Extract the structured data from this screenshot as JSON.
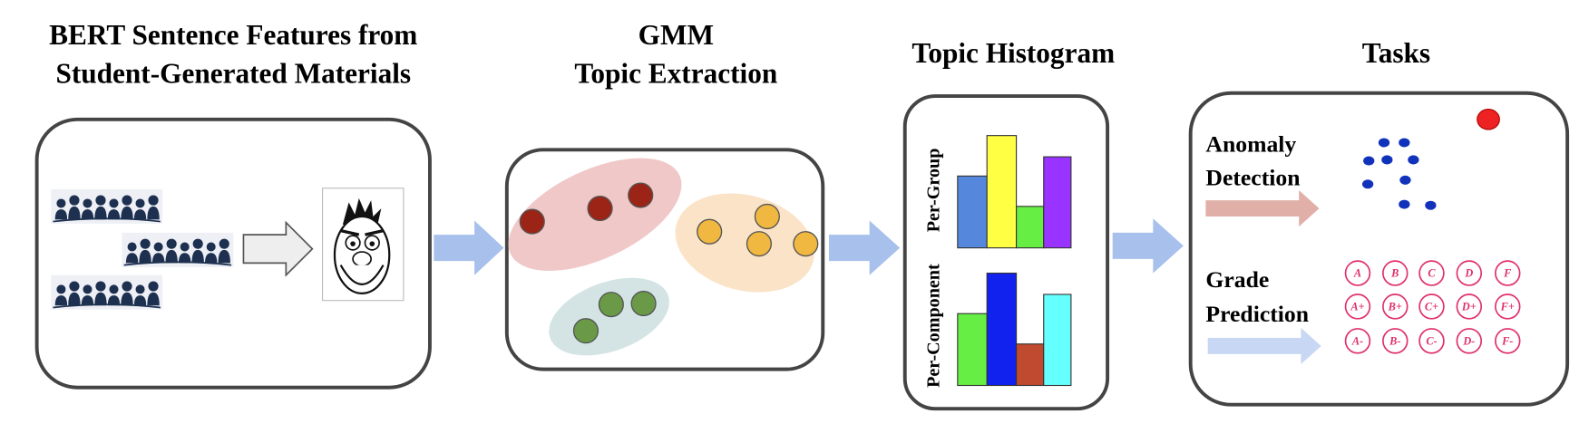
{
  "panels": [
    {
      "title": [
        "BERT Sentence Features from",
        "Student-Generated Materials"
      ]
    },
    {
      "title": [
        "GMM",
        "Topic Extraction"
      ]
    },
    {
      "title": [
        "Topic Histogram"
      ],
      "labels": [
        "Per-Group",
        "Per-Component"
      ]
    },
    {
      "title": [
        "Tasks"
      ]
    }
  ],
  "tasks": [
    {
      "label": [
        "Anomaly",
        "Detection"
      ]
    },
    {
      "label": [
        "Grade",
        "Prediction"
      ]
    }
  ],
  "grades": [
    [
      "A",
      "B",
      "C",
      "D",
      "F"
    ],
    [
      "A+",
      "B+",
      "C+",
      "D+",
      "F+"
    ],
    [
      "A-",
      "B-",
      "C-",
      "D-",
      "F-"
    ]
  ]
}
